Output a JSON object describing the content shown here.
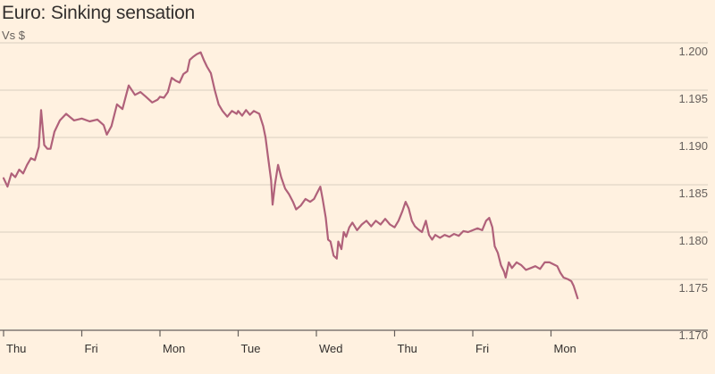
{
  "title": "Euro: Sinking sensation",
  "subtitle": "Vs $",
  "colors": {
    "background": "#fff1e0",
    "line": "#b0617a",
    "grid": "#d9cebf",
    "axis": "#66605c",
    "text": "#33302e"
  },
  "chart_data": {
    "type": "line",
    "title": "Euro: Sinking sensation",
    "ylabel": "Vs $",
    "ylim": [
      1.17,
      1.2
    ],
    "yticks": [
      "1.200",
      "1.195",
      "1.190",
      "1.185",
      "1.180",
      "1.175",
      "1.170"
    ],
    "xticks": [
      "Thu",
      "Fri",
      "Mon",
      "Tue",
      "Wed",
      "Thu",
      "Fri",
      "Mon"
    ],
    "grid": true,
    "series": [
      {
        "name": "",
        "points": [
          [
            0.0,
            1.1857
          ],
          [
            0.05,
            1.1848
          ],
          [
            0.1,
            1.1862
          ],
          [
            0.15,
            1.1858
          ],
          [
            0.2,
            1.1866
          ],
          [
            0.25,
            1.1862
          ],
          [
            0.3,
            1.1871
          ],
          [
            0.35,
            1.1878
          ],
          [
            0.4,
            1.1876
          ],
          [
            0.45,
            1.189
          ],
          [
            0.48,
            1.1929
          ],
          [
            0.52,
            1.1892
          ],
          [
            0.56,
            1.1888
          ],
          [
            0.6,
            1.1888
          ],
          [
            0.65,
            1.1906
          ],
          [
            0.72,
            1.1918
          ],
          [
            0.8,
            1.1925
          ],
          [
            0.9,
            1.1918
          ],
          [
            1.0,
            1.192
          ],
          [
            1.1,
            1.1917
          ],
          [
            1.2,
            1.1919
          ],
          [
            1.28,
            1.1913
          ],
          [
            1.32,
            1.1903
          ],
          [
            1.38,
            1.1912
          ],
          [
            1.45,
            1.1935
          ],
          [
            1.52,
            1.193
          ],
          [
            1.6,
            1.1955
          ],
          [
            1.68,
            1.1945
          ],
          [
            1.75,
            1.1948
          ],
          [
            1.82,
            1.1943
          ],
          [
            1.9,
            1.1937
          ],
          [
            1.97,
            1.194
          ],
          [
            2.0,
            1.1943
          ],
          [
            2.05,
            1.1942
          ],
          [
            2.1,
            1.1948
          ],
          [
            2.15,
            1.1963
          ],
          [
            2.2,
            1.196
          ],
          [
            2.25,
            1.1958
          ],
          [
            2.3,
            1.1967
          ],
          [
            2.35,
            1.197
          ],
          [
            2.38,
            1.1982
          ],
          [
            2.42,
            1.1985
          ],
          [
            2.47,
            1.1988
          ],
          [
            2.52,
            1.199
          ],
          [
            2.56,
            1.1982
          ],
          [
            2.6,
            1.1975
          ],
          [
            2.65,
            1.1968
          ],
          [
            2.7,
            1.195
          ],
          [
            2.75,
            1.1935
          ],
          [
            2.8,
            1.1928
          ],
          [
            2.86,
            1.1922
          ],
          [
            2.92,
            1.1928
          ],
          [
            2.98,
            1.1925
          ],
          [
            3.0,
            1.1928
          ],
          [
            3.05,
            1.1923
          ],
          [
            3.1,
            1.1929
          ],
          [
            3.15,
            1.1924
          ],
          [
            3.2,
            1.1928
          ],
          [
            3.27,
            1.1925
          ],
          [
            3.32,
            1.1912
          ],
          [
            3.35,
            1.19
          ],
          [
            3.38,
            1.188
          ],
          [
            3.42,
            1.1855
          ],
          [
            3.44,
            1.1829
          ],
          [
            3.47,
            1.185
          ],
          [
            3.51,
            1.1871
          ],
          [
            3.55,
            1.1858
          ],
          [
            3.6,
            1.1846
          ],
          [
            3.65,
            1.184
          ],
          [
            3.7,
            1.1832
          ],
          [
            3.74,
            1.1824
          ],
          [
            3.8,
            1.1828
          ],
          [
            3.86,
            1.1835
          ],
          [
            3.92,
            1.1832
          ],
          [
            3.97,
            1.1835
          ],
          [
            4.0,
            1.184
          ],
          [
            4.05,
            1.1848
          ],
          [
            4.08,
            1.1835
          ],
          [
            4.12,
            1.1815
          ],
          [
            4.15,
            1.1792
          ],
          [
            4.18,
            1.179
          ],
          [
            4.22,
            1.1775
          ],
          [
            4.26,
            1.1772
          ],
          [
            4.28,
            1.179
          ],
          [
            4.32,
            1.1782
          ],
          [
            4.35,
            1.18
          ],
          [
            4.38,
            1.1795
          ],
          [
            4.42,
            1.1805
          ],
          [
            4.46,
            1.181
          ],
          [
            4.52,
            1.1802
          ],
          [
            4.58,
            1.1808
          ],
          [
            4.64,
            1.1812
          ],
          [
            4.7,
            1.1806
          ],
          [
            4.76,
            1.1812
          ],
          [
            4.82,
            1.1808
          ],
          [
            4.88,
            1.1814
          ],
          [
            4.94,
            1.1808
          ],
          [
            5.0,
            1.1805
          ],
          [
            5.05,
            1.1812
          ],
          [
            5.1,
            1.1822
          ],
          [
            5.14,
            1.1832
          ],
          [
            5.18,
            1.1825
          ],
          [
            5.22,
            1.1812
          ],
          [
            5.26,
            1.1806
          ],
          [
            5.3,
            1.1803
          ],
          [
            5.35,
            1.18
          ],
          [
            5.4,
            1.1812
          ],
          [
            5.44,
            1.1797
          ],
          [
            5.48,
            1.1792
          ],
          [
            5.52,
            1.1797
          ],
          [
            5.58,
            1.1794
          ],
          [
            5.64,
            1.1797
          ],
          [
            5.7,
            1.1795
          ],
          [
            5.76,
            1.1798
          ],
          [
            5.82,
            1.1796
          ],
          [
            5.88,
            1.1801
          ],
          [
            5.94,
            1.18
          ],
          [
            6.0,
            1.1802
          ],
          [
            6.06,
            1.1804
          ],
          [
            6.12,
            1.1802
          ],
          [
            6.17,
            1.1812
          ],
          [
            6.21,
            1.1815
          ],
          [
            6.25,
            1.1805
          ],
          [
            6.28,
            1.1785
          ],
          [
            6.32,
            1.1778
          ],
          [
            6.36,
            1.1765
          ],
          [
            6.4,
            1.1758
          ],
          [
            6.42,
            1.1752
          ],
          [
            6.46,
            1.1768
          ],
          [
            6.5,
            1.1762
          ],
          [
            6.56,
            1.1768
          ],
          [
            6.62,
            1.1765
          ],
          [
            6.68,
            1.176
          ],
          [
            6.74,
            1.1762
          ],
          [
            6.8,
            1.1764
          ],
          [
            6.86,
            1.1761
          ],
          [
            6.92,
            1.1768
          ],
          [
            6.98,
            1.1768
          ],
          [
            7.03,
            1.1766
          ],
          [
            7.08,
            1.1764
          ],
          [
            7.12,
            1.1757
          ],
          [
            7.16,
            1.1752
          ],
          [
            7.22,
            1.175
          ],
          [
            7.26,
            1.1748
          ],
          [
            7.29,
            1.1743
          ],
          [
            7.31,
            1.1738
          ],
          [
            7.34,
            1.173
          ]
        ]
      }
    ]
  }
}
